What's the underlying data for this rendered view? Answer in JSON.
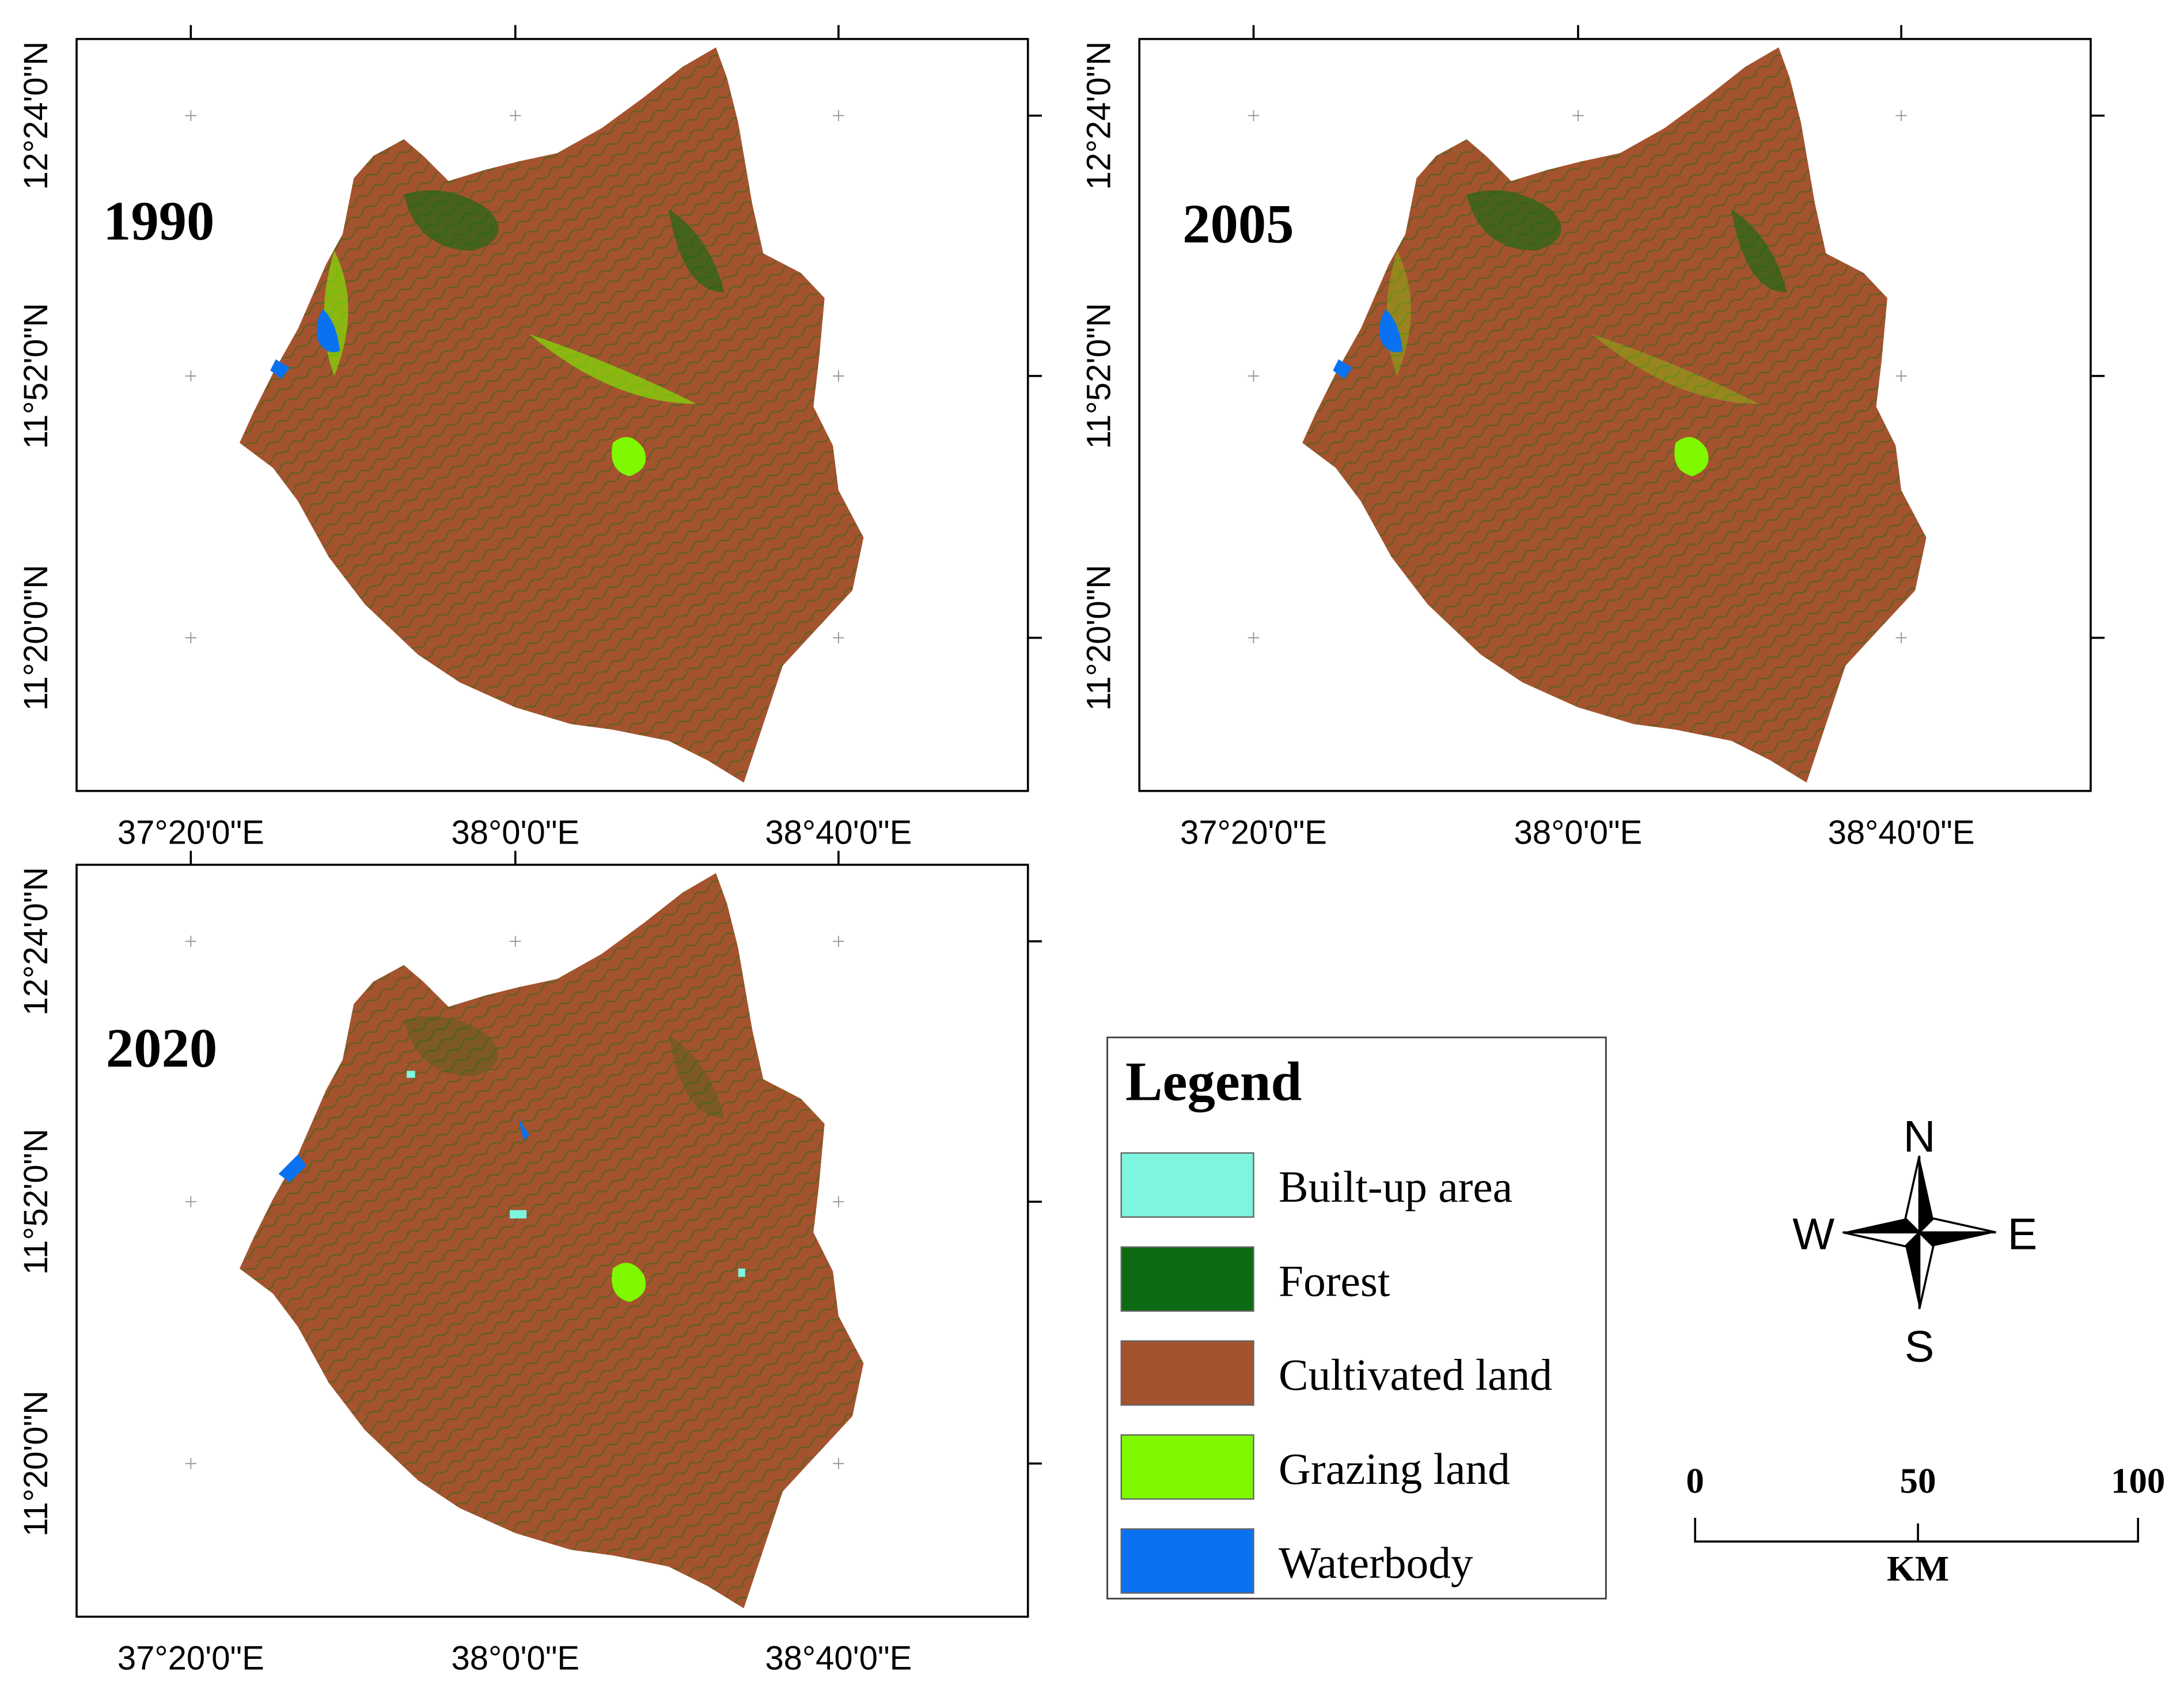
{
  "panels": [
    {
      "year": "1990",
      "x_labels": [
        "37°20'0\"E",
        "38°0'0\"E",
        "38°40'0\"E"
      ],
      "y_labels": [
        "12°24'0\"N",
        "11°52'0\"N",
        "11°20'0\"N"
      ]
    },
    {
      "year": "2005",
      "x_labels": [
        "37°20'0\"E",
        "38°0'0\"E",
        "38°40'0\"E"
      ],
      "y_labels": [
        "12°24'0\"N",
        "11°52'0\"N",
        "11°20'0\"N"
      ]
    },
    {
      "year": "2020",
      "x_labels": [
        "37°20'0\"E",
        "38°0'0\"E",
        "38°40'0\"E"
      ],
      "y_labels": [
        "12°24'0\"N",
        "11°52'0\"N",
        "11°20'0\"N"
      ]
    }
  ],
  "legend": {
    "title": "Legend",
    "items": [
      {
        "label": "Built-up area",
        "color": "#7ef5df"
      },
      {
        "label": "Forest",
        "color": "#0b6a12"
      },
      {
        "label": "Cultivated land",
        "color": "#a4532f"
      },
      {
        "label": "Grazing land",
        "color": "#7ff900"
      },
      {
        "label": "Waterbody",
        "color": "#0a72f0"
      }
    ]
  },
  "compass": {
    "north": "N",
    "east": "E",
    "south": "S",
    "west": "W"
  },
  "scale_bar": {
    "labels": [
      "0",
      "50",
      "100"
    ],
    "unit": "KM"
  }
}
